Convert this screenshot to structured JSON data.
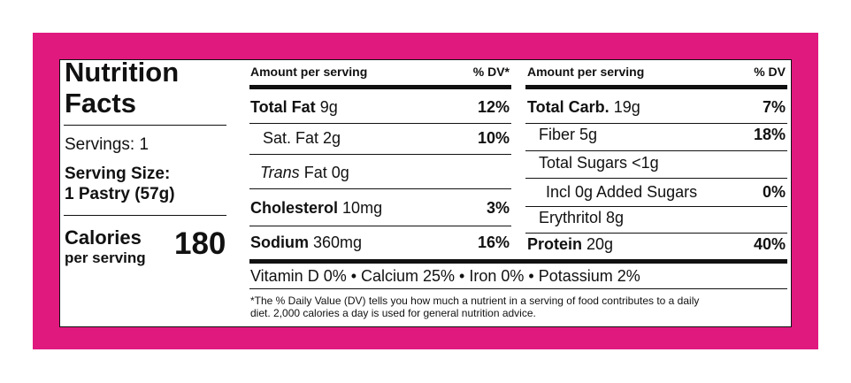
{
  "colors": {
    "frame": "#e0197f",
    "text": "#111111",
    "panel": "#ffffff"
  },
  "label": {
    "title_line1": "Nutrition",
    "title_line2": "Facts",
    "servings": "Servings: 1",
    "serving_size_label": "Serving Size:",
    "serving_size_value": "1 Pastry (57g)",
    "calories_label": "Calories",
    "per_serving": "per serving",
    "calories_value": "180"
  },
  "left_table": {
    "header_amount": "Amount per serving",
    "header_dv": "% DV*",
    "rows": [
      {
        "name": "Total Fat",
        "amount": "9g",
        "dv": "12%"
      },
      {
        "name": "Sat. Fat",
        "amount": "2g",
        "dv": "10%"
      },
      {
        "name": "Trans",
        "amount": "Fat 0g",
        "dv": ""
      },
      {
        "name": "Cholesterol",
        "amount": "10mg",
        "dv": "3%"
      },
      {
        "name": "Sodium",
        "amount": "360mg",
        "dv": "16%"
      }
    ]
  },
  "right_table": {
    "header_amount": "Amount per serving",
    "header_dv": "% DV",
    "rows": [
      {
        "name": "Total Carb.",
        "amount": "19g",
        "dv": "7%"
      },
      {
        "name": "Fiber",
        "amount": "5g",
        "dv": "18%"
      },
      {
        "name": "Total Sugars",
        "amount": "<1g",
        "dv": ""
      },
      {
        "name": "Incl 0g Added Sugars",
        "amount": "",
        "dv": "0%"
      },
      {
        "name": "Erythritol",
        "amount": "8g",
        "dv": ""
      },
      {
        "name": "Protein",
        "amount": "20g",
        "dv": "40%"
      }
    ]
  },
  "vitamins": "Vitamin D 0% • Calcium 25% • Iron 0% • Potassium 2%",
  "footnote_line1": "*The % Daily Value (DV) tells you how much a nutrient in a serving of food contributes to a daily",
  "footnote_line2": "diet. 2,000 calories a day is used for general nutrition advice."
}
